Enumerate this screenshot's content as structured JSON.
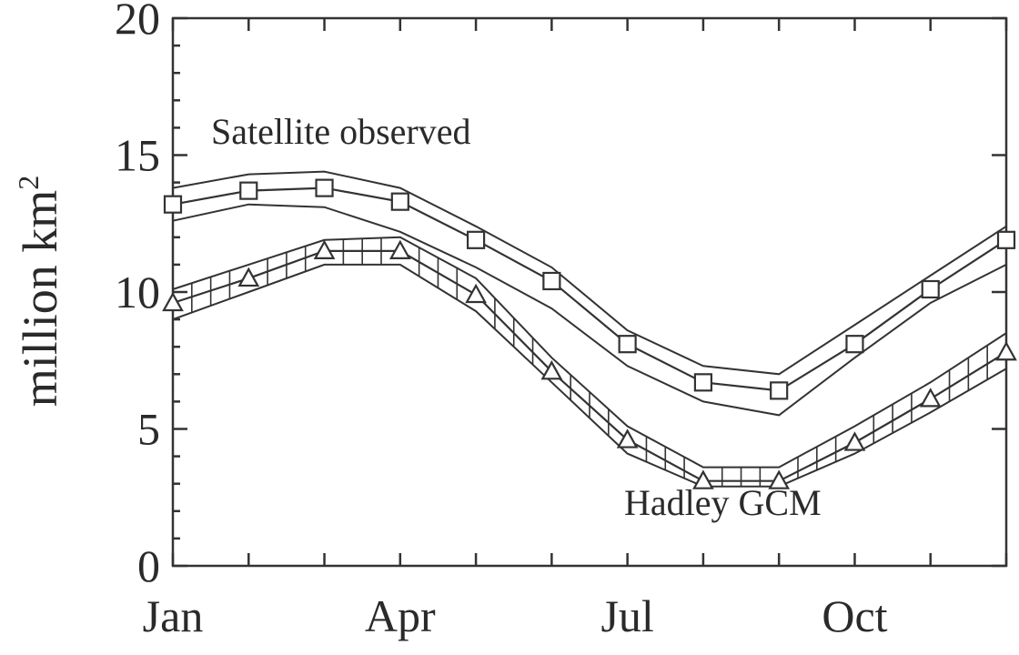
{
  "chart_data": {
    "type": "line",
    "title": "",
    "xlabel": "",
    "ylabel": "million km",
    "ylabel_superscript": "2",
    "x": [
      1,
      2,
      3,
      4,
      5,
      6,
      7,
      8,
      9,
      10,
      11,
      12
    ],
    "x_tick_values": [
      1,
      4,
      7,
      10
    ],
    "x_tick_labels": [
      "Jan",
      "Apr",
      "Jul",
      "Oct"
    ],
    "xlim": [
      1,
      12
    ],
    "ylim": [
      0,
      20
    ],
    "y_ticks": [
      0,
      5,
      10,
      15,
      20
    ],
    "grid": false,
    "series": [
      {
        "values": [
          13.2,
          13.7,
          13.8,
          13.3,
          11.9,
          10.4,
          8.1,
          6.7,
          6.4,
          8.1,
          10.1,
          11.9
        ],
        "upper": [
          13.8,
          14.3,
          14.4,
          13.8,
          12.4,
          10.9,
          8.6,
          7.3,
          7.0,
          8.8,
          10.6,
          12.4
        ],
        "lower": [
          12.6,
          13.2,
          13.1,
          12.2,
          10.9,
          9.4,
          7.3,
          6.0,
          5.5,
          7.6,
          9.6,
          11.0
        ],
        "marker": "square",
        "band_style": "plain"
      },
      {
        "values": [
          9.6,
          10.5,
          11.5,
          11.5,
          9.9,
          7.1,
          4.6,
          3.1,
          3.1,
          4.5,
          6.1,
          7.8
        ],
        "upper": [
          10.1,
          11.0,
          11.9,
          12.0,
          10.5,
          7.6,
          5.1,
          3.6,
          3.6,
          5.1,
          6.7,
          8.5
        ],
        "lower": [
          9.0,
          10.0,
          11.0,
          11.0,
          9.3,
          6.7,
          4.1,
          2.9,
          2.9,
          4.1,
          5.6,
          7.2
        ],
        "marker": "triangle",
        "band_style": "hatched"
      }
    ],
    "annotations": [
      {
        "text": "Satellite observed"
      },
      {
        "text": "Hadley GCM"
      }
    ]
  }
}
